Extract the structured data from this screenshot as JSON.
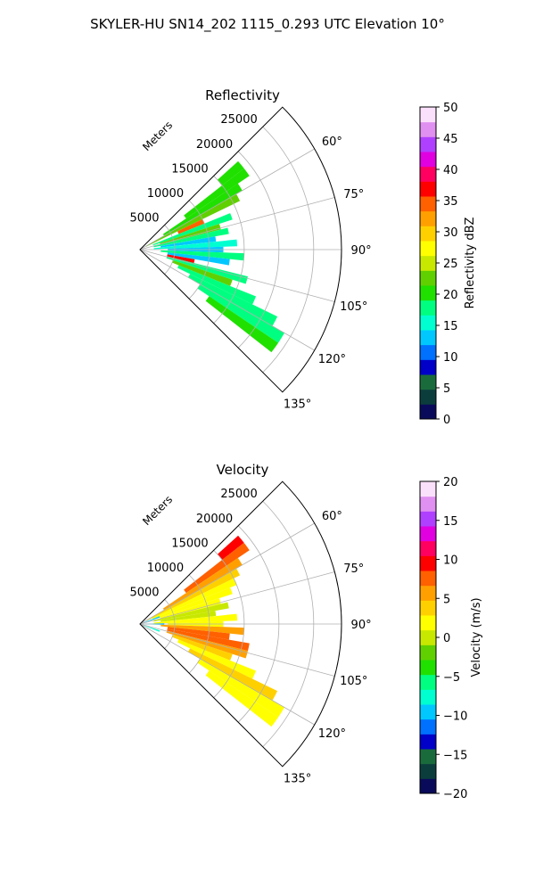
{
  "suptitle": "SKYLER-HU  SN14_202  1115_0.293 UTC Elevation 10°",
  "chart_data": [
    {
      "type": "heatmap",
      "subtype": "polar-sector (PPI)",
      "title": "Reflectivity",
      "radial_label": "Meters",
      "radial_ticks": [
        "5000",
        "10000",
        "15000",
        "20000",
        "25000"
      ],
      "radial_tick_values": [
        5000,
        10000,
        15000,
        20000,
        25000
      ],
      "r_max": 29000,
      "theta_min_deg": 45,
      "theta_max_deg": 135,
      "theta_ticks": [
        "60°",
        "75°",
        "90°",
        "105°",
        "120°",
        "135°"
      ],
      "theta_tick_values": [
        60,
        75,
        90,
        105,
        120,
        135
      ],
      "grid": true,
      "colorbar": {
        "label": "Reflectivity dBZ",
        "min": 0,
        "max": 50,
        "ticks": [
          "0",
          "5",
          "10",
          "15",
          "20",
          "25",
          "30",
          "35",
          "40",
          "45",
          "50"
        ],
        "tick_values": [
          0,
          5,
          10,
          15,
          20,
          25,
          30,
          35,
          40,
          45,
          50
        ],
        "colors": [
          "#0a0a5a",
          "#0b3d3d",
          "#1a6b3c",
          "#0000c8",
          "#0070ff",
          "#00c8ff",
          "#00ffd0",
          "#00ff80",
          "#20e000",
          "#60d000",
          "#c8e800",
          "#ffff00",
          "#ffd000",
          "#ffa000",
          "#ff6000",
          "#ff0000",
          "#ff0060",
          "#e000e0",
          "#b040ff",
          "#e090f0",
          "#fbe0fb"
        ]
      },
      "cells": [
        {
          "theta": 50,
          "r0": 15000,
          "r1": 19000,
          "value": 20
        },
        {
          "theta": 54,
          "r0": 8000,
          "r1": 19000,
          "value": 21
        },
        {
          "theta": 58,
          "r0": 4000,
          "r1": 17000,
          "value": 20
        },
        {
          "theta": 62,
          "r0": 1000,
          "r1": 16000,
          "value": 22
        },
        {
          "theta": 66,
          "r0": 6000,
          "r1": 10000,
          "value": 34
        },
        {
          "theta": 70,
          "r0": 2000,
          "r1": 14000,
          "value": 19
        },
        {
          "theta": 74,
          "r0": 3000,
          "r1": 12000,
          "value": 23
        },
        {
          "theta": 78,
          "r0": 2000,
          "r1": 13000,
          "value": 17
        },
        {
          "theta": 82,
          "r0": 3000,
          "r1": 11000,
          "value": 14
        },
        {
          "theta": 86,
          "r0": 2000,
          "r1": 14000,
          "value": 16
        },
        {
          "theta": 90,
          "r0": 4000,
          "r1": 12000,
          "value": 13
        },
        {
          "theta": 94,
          "r0": 3000,
          "r1": 15000,
          "value": 18
        },
        {
          "theta": 98,
          "r0": 4000,
          "r1": 13000,
          "value": 14
        },
        {
          "theta": 102,
          "r0": 4000,
          "r1": 8000,
          "value": 37
        },
        {
          "theta": 106,
          "r0": 4000,
          "r1": 16000,
          "value": 19
        },
        {
          "theta": 110,
          "r0": 5000,
          "r1": 14000,
          "value": 22
        },
        {
          "theta": 114,
          "r0": 6000,
          "r1": 18000,
          "value": 18
        },
        {
          "theta": 118,
          "r0": 8000,
          "r1": 22000,
          "value": 19
        },
        {
          "theta": 122,
          "r0": 10000,
          "r1": 24000,
          "value": 19
        },
        {
          "theta": 126,
          "r0": 12000,
          "r1": 24000,
          "value": 20
        }
      ]
    },
    {
      "type": "heatmap",
      "subtype": "polar-sector (PPI)",
      "title": "Velocity",
      "radial_label": "Meters",
      "radial_ticks": [
        "5000",
        "10000",
        "15000",
        "20000",
        "25000"
      ],
      "radial_tick_values": [
        5000,
        10000,
        15000,
        20000,
        25000
      ],
      "r_max": 29000,
      "theta_min_deg": 45,
      "theta_max_deg": 135,
      "theta_ticks": [
        "60°",
        "75°",
        "90°",
        "105°",
        "120°",
        "135°"
      ],
      "theta_tick_values": [
        60,
        75,
        90,
        105,
        120,
        135
      ],
      "grid": true,
      "colorbar": {
        "label": "Velocity (m/s)",
        "min": -20,
        "max": 20,
        "ticks": [
          "−20",
          "−15",
          "−10",
          "−5",
          "0",
          "5",
          "10",
          "15",
          "20"
        ],
        "tick_values": [
          -20,
          -15,
          -10,
          -5,
          0,
          5,
          10,
          15,
          20
        ],
        "colors": [
          "#0a0a5a",
          "#0b3d3d",
          "#1a6b3c",
          "#0000c8",
          "#0070ff",
          "#00c8ff",
          "#00ffd0",
          "#00ff80",
          "#20e000",
          "#60d000",
          "#c8e800",
          "#ffff00",
          "#ffd000",
          "#ffa000",
          "#ff6000",
          "#ff0000",
          "#ff0060",
          "#e000e0",
          "#b040ff",
          "#e090f0",
          "#fbe0fb"
        ]
      },
      "cells": [
        {
          "theta": 50,
          "r0": 15000,
          "r1": 19000,
          "value": 10
        },
        {
          "theta": 54,
          "r0": 8000,
          "r1": 19000,
          "value": 7
        },
        {
          "theta": 58,
          "r0": 4000,
          "r1": 17000,
          "value": 5
        },
        {
          "theta": 62,
          "r0": 1000,
          "r1": 16000,
          "value": 3
        },
        {
          "theta": 66,
          "r0": 2000,
          "r1": 15000,
          "value": 2
        },
        {
          "theta": 70,
          "r0": 2000,
          "r1": 14000,
          "value": 1
        },
        {
          "theta": 74,
          "r0": 3000,
          "r1": 12000,
          "value": 1
        },
        {
          "theta": 78,
          "r0": 2000,
          "r1": 13000,
          "value": 0
        },
        {
          "theta": 82,
          "r0": 3000,
          "r1": 11000,
          "value": 0
        },
        {
          "theta": 86,
          "r0": 2000,
          "r1": 14000,
          "value": 1
        },
        {
          "theta": 90,
          "r0": 4000,
          "r1": 12000,
          "value": 2
        },
        {
          "theta": 94,
          "r0": 3000,
          "r1": 15000,
          "value": 5
        },
        {
          "theta": 98,
          "r0": 4000,
          "r1": 13000,
          "value": 7
        },
        {
          "theta": 102,
          "r0": 4000,
          "r1": 16000,
          "value": 8
        },
        {
          "theta": 106,
          "r0": 4000,
          "r1": 16000,
          "value": 6
        },
        {
          "theta": 110,
          "r0": 5000,
          "r1": 14000,
          "value": 3
        },
        {
          "theta": 114,
          "r0": 6000,
          "r1": 18000,
          "value": 2
        },
        {
          "theta": 118,
          "r0": 8000,
          "r1": 22000,
          "value": 3
        },
        {
          "theta": 122,
          "r0": 10000,
          "r1": 24000,
          "value": 2
        },
        {
          "theta": 126,
          "r0": 12000,
          "r1": 24000,
          "value": 1
        },
        {
          "theta": 70,
          "r0": 0,
          "r1": 3000,
          "value": -9
        },
        {
          "theta": 90,
          "r0": 0,
          "r1": 3500,
          "value": -10
        },
        {
          "theta": 110,
          "r0": 0,
          "r1": 3000,
          "value": -8
        }
      ]
    }
  ]
}
